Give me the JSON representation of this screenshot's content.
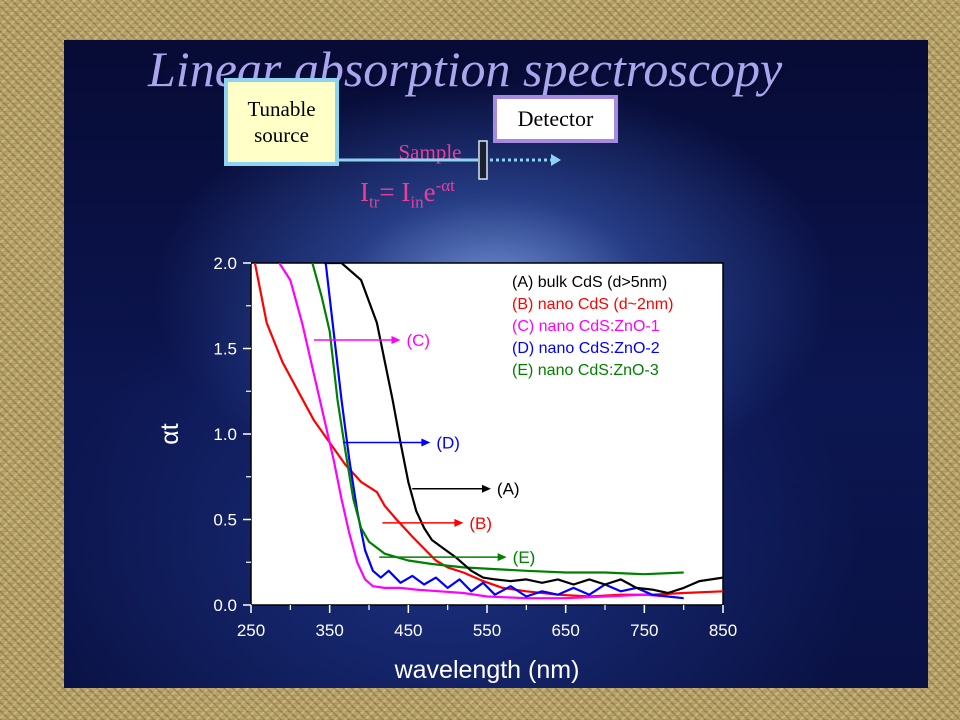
{
  "slide": {
    "title": "Linear absorption spectroscopy",
    "source_label": "Tunable source",
    "detector_label": "Detector",
    "sample_label": "Sample",
    "equation": {
      "I": "I",
      "tr": "tr",
      "eq": "= I",
      "in": "in",
      "e": "e",
      "exp": "-αt"
    }
  },
  "colors": {
    "A": "#000000",
    "B": "#ff0000",
    "C": "#ff00ff",
    "D": "#0000ff",
    "E": "#008000",
    "title": "#a9a6ee",
    "accent_pink": "#e8409a"
  },
  "chart_data": {
    "type": "line",
    "xlabel": "wavelength (nm)",
    "ylabel": "αt",
    "xlim": [
      250,
      850
    ],
    "ylim": [
      0,
      2
    ],
    "xticks": [
      "250",
      "350",
      "450",
      "550",
      "650",
      "750",
      "850"
    ],
    "yticks": [
      "0.0",
      "0.5",
      "1.0",
      "1.5",
      "2.0"
    ],
    "legend_position": "top-right",
    "series": [
      {
        "name": "(A) bulk CdS (d>5nm)",
        "key": "A",
        "points": [
          [
            343,
            2.0
          ],
          [
            365,
            2.0
          ],
          [
            390,
            1.9
          ],
          [
            410,
            1.65
          ],
          [
            430,
            1.2
          ],
          [
            440,
            0.95
          ],
          [
            450,
            0.72
          ],
          [
            460,
            0.55
          ],
          [
            470,
            0.45
          ],
          [
            480,
            0.38
          ],
          [
            495,
            0.33
          ],
          [
            510,
            0.28
          ],
          [
            530,
            0.2
          ],
          [
            545,
            0.16
          ],
          [
            560,
            0.15
          ],
          [
            580,
            0.14
          ],
          [
            600,
            0.15
          ],
          [
            620,
            0.13
          ],
          [
            640,
            0.15
          ],
          [
            660,
            0.12
          ],
          [
            680,
            0.15
          ],
          [
            700,
            0.12
          ],
          [
            720,
            0.15
          ],
          [
            740,
            0.1
          ],
          [
            760,
            0.09
          ],
          [
            780,
            0.07
          ],
          [
            800,
            0.1
          ],
          [
            820,
            0.14
          ],
          [
            850,
            0.16
          ]
        ]
      },
      {
        "name": "(B) nano CdS (d~2nm)",
        "key": "B",
        "points": [
          [
            255,
            2.0
          ],
          [
            270,
            1.65
          ],
          [
            290,
            1.42
          ],
          [
            310,
            1.25
          ],
          [
            330,
            1.08
          ],
          [
            350,
            0.95
          ],
          [
            370,
            0.82
          ],
          [
            390,
            0.72
          ],
          [
            410,
            0.66
          ],
          [
            420,
            0.58
          ],
          [
            435,
            0.5
          ],
          [
            445,
            0.45
          ],
          [
            455,
            0.4
          ],
          [
            470,
            0.33
          ],
          [
            485,
            0.26
          ],
          [
            500,
            0.22
          ],
          [
            520,
            0.19
          ],
          [
            545,
            0.14
          ],
          [
            570,
            0.1
          ],
          [
            600,
            0.08
          ],
          [
            640,
            0.06
          ],
          [
            680,
            0.05
          ],
          [
            720,
            0.06
          ],
          [
            760,
            0.06
          ],
          [
            800,
            0.07
          ],
          [
            850,
            0.08
          ]
        ]
      },
      {
        "name": "(C) nano CdS:ZnO-1",
        "key": "C",
        "points": [
          [
            286,
            2.0
          ],
          [
            300,
            1.9
          ],
          [
            315,
            1.65
          ],
          [
            330,
            1.35
          ],
          [
            345,
            1.05
          ],
          [
            355,
            0.85
          ],
          [
            365,
            0.62
          ],
          [
            375,
            0.42
          ],
          [
            385,
            0.25
          ],
          [
            395,
            0.15
          ],
          [
            405,
            0.11
          ],
          [
            420,
            0.1
          ],
          [
            440,
            0.1
          ],
          [
            460,
            0.09
          ],
          [
            490,
            0.08
          ],
          [
            520,
            0.07
          ],
          [
            550,
            0.05
          ],
          [
            600,
            0.04
          ],
          [
            650,
            0.04
          ],
          [
            700,
            0.05
          ],
          [
            750,
            0.06
          ],
          [
            780,
            0.05
          ]
        ]
      },
      {
        "name": "(D) nano CdS:ZnO-2",
        "key": "D",
        "points": [
          [
            345,
            2.0
          ],
          [
            355,
            1.6
          ],
          [
            365,
            1.2
          ],
          [
            375,
            0.85
          ],
          [
            385,
            0.55
          ],
          [
            395,
            0.32
          ],
          [
            405,
            0.2
          ],
          [
            415,
            0.16
          ],
          [
            425,
            0.2
          ],
          [
            440,
            0.13
          ],
          [
            455,
            0.17
          ],
          [
            470,
            0.12
          ],
          [
            485,
            0.16
          ],
          [
            500,
            0.1
          ],
          [
            515,
            0.15
          ],
          [
            530,
            0.08
          ],
          [
            545,
            0.13
          ],
          [
            560,
            0.06
          ],
          [
            580,
            0.11
          ],
          [
            600,
            0.05
          ],
          [
            620,
            0.08
          ],
          [
            640,
            0.06
          ],
          [
            660,
            0.1
          ],
          [
            680,
            0.06
          ],
          [
            700,
            0.12
          ],
          [
            720,
            0.08
          ],
          [
            740,
            0.1
          ],
          [
            760,
            0.06
          ],
          [
            780,
            0.05
          ],
          [
            800,
            0.04
          ]
        ]
      },
      {
        "name": "(E) nano CdS:ZnO-3",
        "key": "E",
        "points": [
          [
            328,
            2.0
          ],
          [
            340,
            1.8
          ],
          [
            350,
            1.6
          ],
          [
            360,
            1.2
          ],
          [
            370,
            0.9
          ],
          [
            380,
            0.62
          ],
          [
            390,
            0.45
          ],
          [
            400,
            0.37
          ],
          [
            420,
            0.3
          ],
          [
            450,
            0.26
          ],
          [
            480,
            0.24
          ],
          [
            520,
            0.22
          ],
          [
            560,
            0.21
          ],
          [
            600,
            0.2
          ],
          [
            650,
            0.19
          ],
          [
            700,
            0.19
          ],
          [
            750,
            0.18
          ],
          [
            800,
            0.19
          ]
        ]
      }
    ],
    "annotations": [
      {
        "label": "(C)",
        "key": "C",
        "from": [
          330,
          1.55
        ],
        "to": [
          440,
          1.55
        ]
      },
      {
        "label": "(D)",
        "key": "D",
        "from": [
          367,
          0.95
        ],
        "to": [
          478,
          0.95
        ]
      },
      {
        "label": "(A)",
        "key": "A",
        "from": [
          455,
          0.68
        ],
        "to": [
          555,
          0.68
        ]
      },
      {
        "label": "(B)",
        "key": "B",
        "from": [
          417,
          0.48
        ],
        "to": [
          520,
          0.48
        ]
      },
      {
        "label": "(E)",
        "key": "E",
        "from": [
          413,
          0.28
        ],
        "to": [
          575,
          0.28
        ]
      }
    ]
  }
}
